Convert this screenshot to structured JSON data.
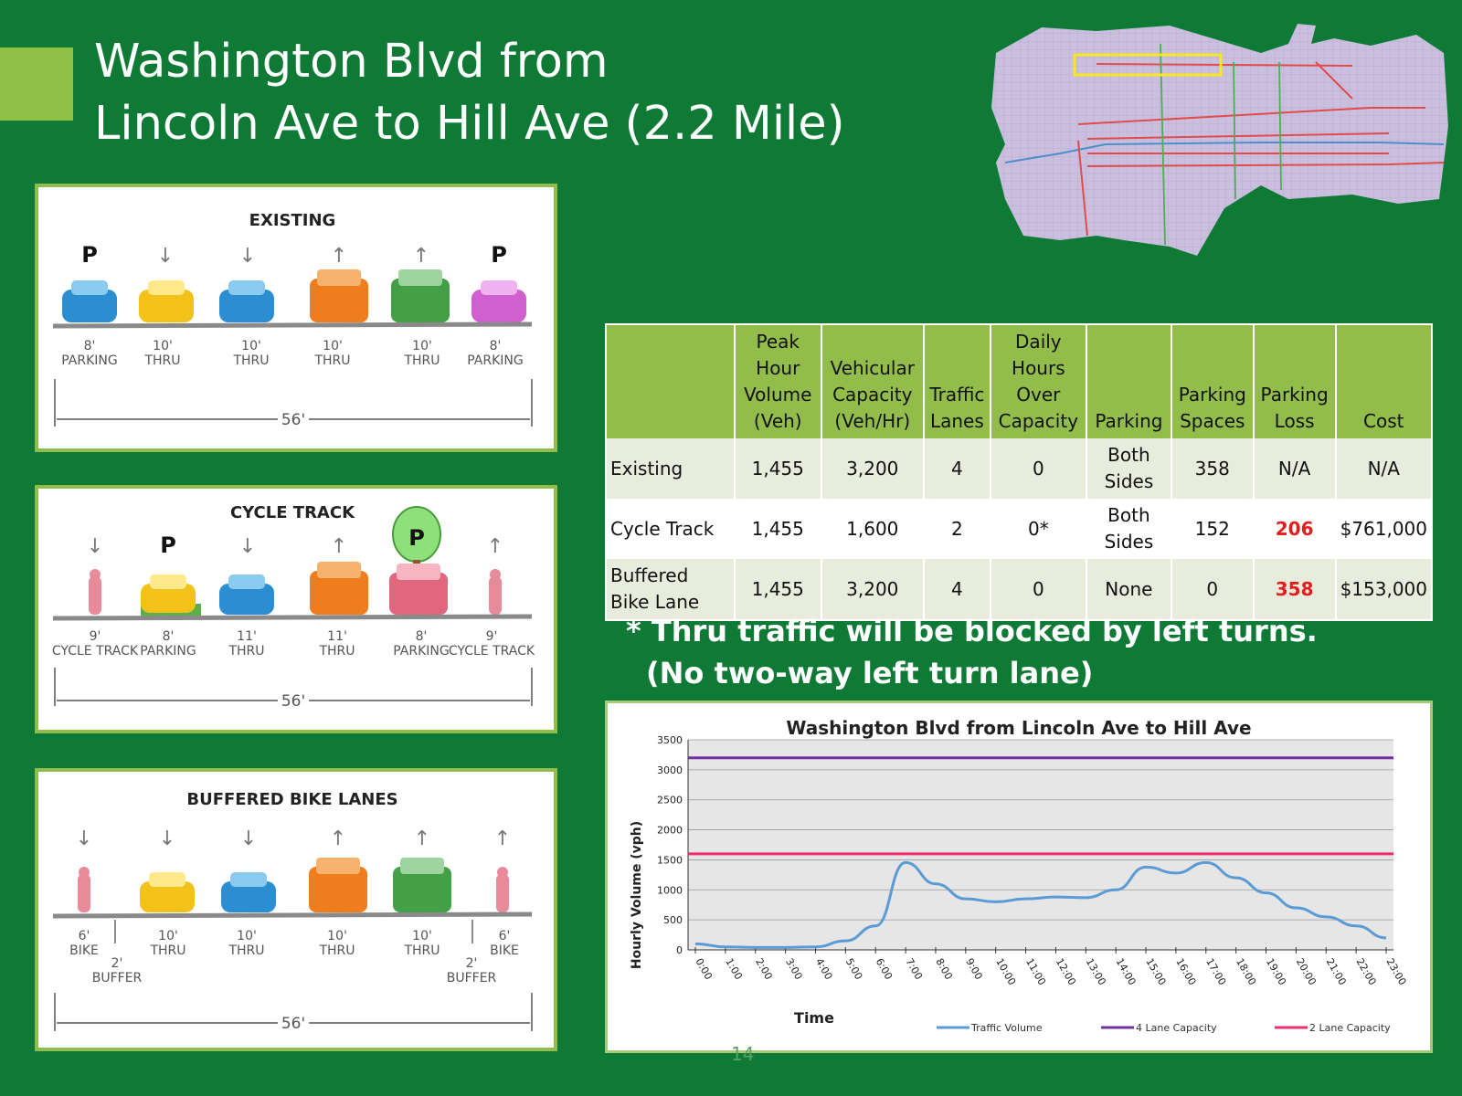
{
  "slide": {
    "title_line1": "Washington Blvd from",
    "title_line2": "Lincoln Ave to Hill Ave (2.2 Mile)",
    "page_number": "14",
    "note_line1": "* Thru traffic will be blocked by left turns.",
    "note_line2": "(No two-way left turn lane)"
  },
  "sections": {
    "existing": {
      "title": "EXISTING",
      "symbols": [
        "P",
        "↓",
        "↓",
        "↑",
        "↑",
        "P"
      ],
      "lanes": [
        {
          "width": "8'",
          "type": "PARKING"
        },
        {
          "width": "10'",
          "type": "THRU"
        },
        {
          "width": "10'",
          "type": "THRU"
        },
        {
          "width": "10'",
          "type": "THRU"
        },
        {
          "width": "10'",
          "type": "THRU"
        },
        {
          "width": "8'",
          "type": "PARKING"
        }
      ],
      "total": "56'"
    },
    "cycle_track": {
      "title": "CYCLE TRACK",
      "symbols": [
        "↓",
        "P",
        "↓",
        "↑",
        "P",
        "↑"
      ],
      "lanes": [
        {
          "width": "9'",
          "type": "CYCLE TRACK"
        },
        {
          "width": "8'",
          "type": "PARKING"
        },
        {
          "width": "11'",
          "type": "THRU"
        },
        {
          "width": "11'",
          "type": "THRU"
        },
        {
          "width": "8'",
          "type": "PARKING"
        },
        {
          "width": "9'",
          "type": "CYCLE TRACK"
        }
      ],
      "total": "56'"
    },
    "buffered": {
      "title": "BUFFERED BIKE LANES",
      "symbols": [
        "↓",
        "↓",
        "↓",
        "↑",
        "↑",
        "↑"
      ],
      "lanes": [
        {
          "width": "6'",
          "type": "BIKE"
        },
        {
          "width": "10'",
          "type": "THRU"
        },
        {
          "width": "10'",
          "type": "THRU"
        },
        {
          "width": "10'",
          "type": "THRU"
        },
        {
          "width": "10'",
          "type": "THRU"
        },
        {
          "width": "6'",
          "type": "BIKE"
        }
      ],
      "buffers": [
        {
          "width": "2'",
          "type": "BUFFER"
        },
        {
          "width": "2'",
          "type": "BUFFER"
        }
      ],
      "total": "56'"
    }
  },
  "table": {
    "headers": [
      "",
      "Peak Hour Volume (Veh)",
      "Vehicular Capacity (Veh/Hr)",
      "Traffic Lanes",
      "Daily Hours Over Capacity",
      "Parking",
      "Parking Spaces",
      "Parking Loss",
      "Cost"
    ],
    "rows": [
      [
        "Existing",
        "1,455",
        "3,200",
        "4",
        "0",
        "Both Sides",
        "358",
        "N/A",
        "N/A"
      ],
      [
        "Cycle Track",
        "1,455",
        "1,600",
        "2",
        "0*",
        "Both Sides",
        "152",
        "206",
        "$761,000"
      ],
      [
        "Buffered Bike Lane",
        "1,455",
        "3,200",
        "4",
        "0",
        "None",
        "0",
        "358",
        "$153,000"
      ]
    ]
  },
  "colors": {
    "background": "#0f7a35",
    "accent": "#92bd4a",
    "loss_red": "#e11d1d",
    "traffic_line": "#5b9bd5",
    "four_lane_line": "#7030a0",
    "two_lane_line": "#ee2d6e"
  },
  "chart_data": {
    "type": "line",
    "title": "Washington Blvd from Lincoln Ave to Hill Ave",
    "xlabel": "Time",
    "ylabel": "Hourly Volume (vph)",
    "ylim": [
      0,
      3500
    ],
    "yticks": [
      0,
      500,
      1000,
      1500,
      2000,
      2500,
      3000,
      3500
    ],
    "categories": [
      "0:00",
      "1:00",
      "2:00",
      "3:00",
      "4:00",
      "5:00",
      "6:00",
      "7:00",
      "8:00",
      "9:00",
      "10:00",
      "11:00",
      "12:00",
      "13:00",
      "14:00",
      "15:00",
      "16:00",
      "17:00",
      "18:00",
      "19:00",
      "20:00",
      "21:00",
      "22:00",
      "23:00"
    ],
    "grid": true,
    "legend": "bottom-right",
    "series": [
      {
        "name": "Traffic Volume",
        "values": [
          100,
          50,
          40,
          40,
          50,
          150,
          400,
          1455,
          1100,
          850,
          800,
          850,
          880,
          870,
          1000,
          1380,
          1280,
          1455,
          1200,
          950,
          700,
          550,
          400,
          200
        ]
      },
      {
        "name": "4 Lane Capacity",
        "values": [
          3200,
          3200,
          3200,
          3200,
          3200,
          3200,
          3200,
          3200,
          3200,
          3200,
          3200,
          3200,
          3200,
          3200,
          3200,
          3200,
          3200,
          3200,
          3200,
          3200,
          3200,
          3200,
          3200,
          3200
        ]
      },
      {
        "name": "2 Lane Capacity",
        "values": [
          1600,
          1600,
          1600,
          1600,
          1600,
          1600,
          1600,
          1600,
          1600,
          1600,
          1600,
          1600,
          1600,
          1600,
          1600,
          1600,
          1600,
          1600,
          1600,
          1600,
          1600,
          1600,
          1600,
          1600
        ]
      }
    ]
  }
}
